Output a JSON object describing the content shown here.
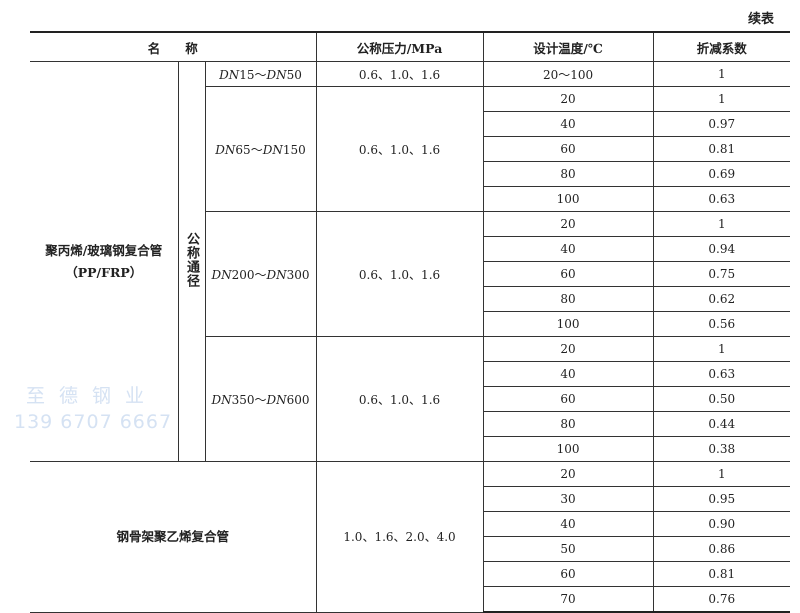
{
  "caption": "续表",
  "headers": {
    "name": "名　　称",
    "pressure": "公称压力/MPa",
    "temperature": "设计温度/℃",
    "factor": "折减系数"
  },
  "nominal_diameter_label": "公称通径",
  "groups": [
    {
      "name_line1": "聚丙烯/玻璃钢复合管",
      "name_line2": "（PP/FRP）",
      "sizes": [
        {
          "from": "DN",
          "from_num": "15",
          "to": "DN",
          "to_num": "50",
          "pressure": "0.6、1.0、1.6",
          "rows": [
            {
              "temp": "20～100",
              "factor": "1"
            }
          ]
        },
        {
          "from": "DN",
          "from_num": "65",
          "to": "DN",
          "to_num": "150",
          "pressure": "0.6、1.0、1.6",
          "rows": [
            {
              "temp": "20",
              "factor": "1"
            },
            {
              "temp": "40",
              "factor": "0.97"
            },
            {
              "temp": "60",
              "factor": "0.81"
            },
            {
              "temp": "80",
              "factor": "0.69"
            },
            {
              "temp": "100",
              "factor": "0.63"
            }
          ]
        },
        {
          "from": "DN",
          "from_num": "200",
          "to": "DN",
          "to_num": "300",
          "pressure": "0.6、1.0、1.6",
          "rows": [
            {
              "temp": "20",
              "factor": "1"
            },
            {
              "temp": "40",
              "factor": "0.94"
            },
            {
              "temp": "60",
              "factor": "0.75"
            },
            {
              "temp": "80",
              "factor": "0.62"
            },
            {
              "temp": "100",
              "factor": "0.56"
            }
          ]
        },
        {
          "from": "DN",
          "from_num": "350",
          "to": "DN",
          "to_num": "600",
          "pressure": "0.6、1.0、1.6",
          "rows": [
            {
              "temp": "20",
              "factor": "1"
            },
            {
              "temp": "40",
              "factor": "0.63"
            },
            {
              "temp": "60",
              "factor": "0.50"
            },
            {
              "temp": "80",
              "factor": "0.44"
            },
            {
              "temp": "100",
              "factor": "0.38"
            }
          ]
        }
      ]
    },
    {
      "name_line1": "钢骨架聚乙烯复合管",
      "pressure": "1.0、1.6、2.0、4.0",
      "rows": [
        {
          "temp": "20",
          "factor": "1"
        },
        {
          "temp": "30",
          "factor": "0.95"
        },
        {
          "temp": "40",
          "factor": "0.90"
        },
        {
          "temp": "50",
          "factor": "0.86"
        },
        {
          "temp": "60",
          "factor": "0.81"
        },
        {
          "temp": "70",
          "factor": "0.76"
        }
      ]
    }
  ],
  "watermark": {
    "line1": "至德钢业",
    "line2": "139 6707 6667"
  }
}
